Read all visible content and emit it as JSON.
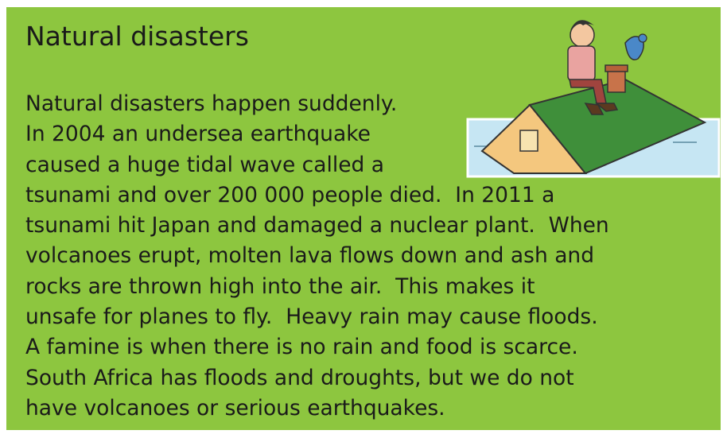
{
  "header": {
    "title": "Natural disasters"
  },
  "body": {
    "lines": [
      "Natural disasters happen suddenly.",
      "In 2004 an undersea earthquake",
      "caused a huge tidal wave called a",
      "tsunami and over 200 000 people died.  In 2011 a",
      "tsunami hit Japan and damaged a nuclear plant.  When",
      "volcanoes erupt, molten lava flows down and ash and",
      "rocks are thrown high into the air.  This makes it",
      "unsafe for planes to fly.  Heavy rain may cause floods.",
      "A famine is when there is no rain and food is scarce.",
      "South Africa has floods and droughts, but we do not",
      "have volcanoes or serious earthquakes."
    ]
  }
}
